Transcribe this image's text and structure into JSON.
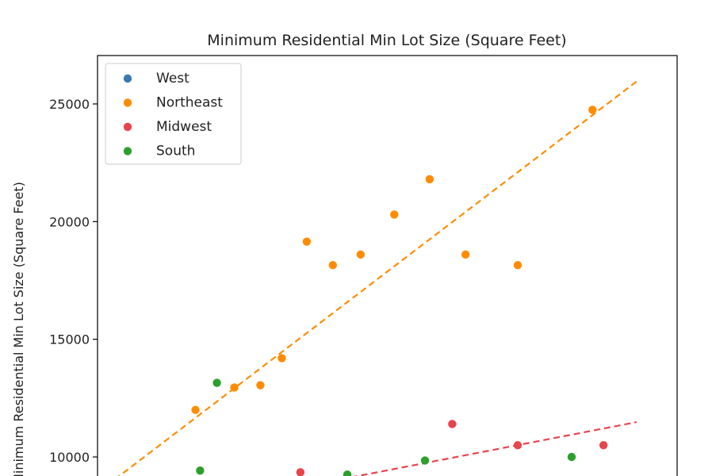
{
  "chart_data": {
    "type": "scatter",
    "title": "Minimum Residential Min Lot Size (Square Feet)",
    "xlabel": "",
    "ylabel": "Minimum Residential Min Lot Size (Square Feet)",
    "ylim": [
      8800,
      27000
    ],
    "xlim": [
      0,
      100
    ],
    "yticks": [
      10000,
      15000,
      20000,
      25000
    ],
    "grid": false,
    "legend_position": "top-left",
    "series": [
      {
        "name": "West",
        "color": "#3a78b0",
        "points": []
      },
      {
        "name": "Northeast",
        "color": "#ff8c00",
        "points": [
          {
            "x": 16.9,
            "y": 12000
          },
          {
            "x": 23.6,
            "y": 12950
          },
          {
            "x": 28.1,
            "y": 13050
          },
          {
            "x": 31.8,
            "y": 14200
          },
          {
            "x": 36.1,
            "y": 19150
          },
          {
            "x": 40.6,
            "y": 18150
          },
          {
            "x": 45.4,
            "y": 18600
          },
          {
            "x": 51.2,
            "y": 20300
          },
          {
            "x": 57.3,
            "y": 21800
          },
          {
            "x": 63.5,
            "y": 18600
          },
          {
            "x": 72.5,
            "y": 18150
          },
          {
            "x": 85.4,
            "y": 24750
          }
        ],
        "trend": {
          "x": [
            3.0,
            93.0
          ],
          "y": [
            9050,
            25950
          ]
        }
      },
      {
        "name": "Midwest",
        "color": "#e8444d",
        "points": [
          {
            "x": 35.0,
            "y": 9350
          },
          {
            "x": 61.2,
            "y": 11400
          },
          {
            "x": 72.5,
            "y": 10500
          },
          {
            "x": 87.3,
            "y": 10500
          }
        ],
        "trend": {
          "x": [
            42.0,
            93.0
          ],
          "y": [
            9050,
            11480
          ]
        }
      },
      {
        "name": "South",
        "color": "#2ca02c",
        "points": [
          {
            "x": 17.7,
            "y": 9420
          },
          {
            "x": 20.6,
            "y": 13150
          },
          {
            "x": 43.1,
            "y": 9250
          },
          {
            "x": 56.5,
            "y": 9850
          },
          {
            "x": 81.8,
            "y": 10000
          }
        ]
      }
    ]
  }
}
